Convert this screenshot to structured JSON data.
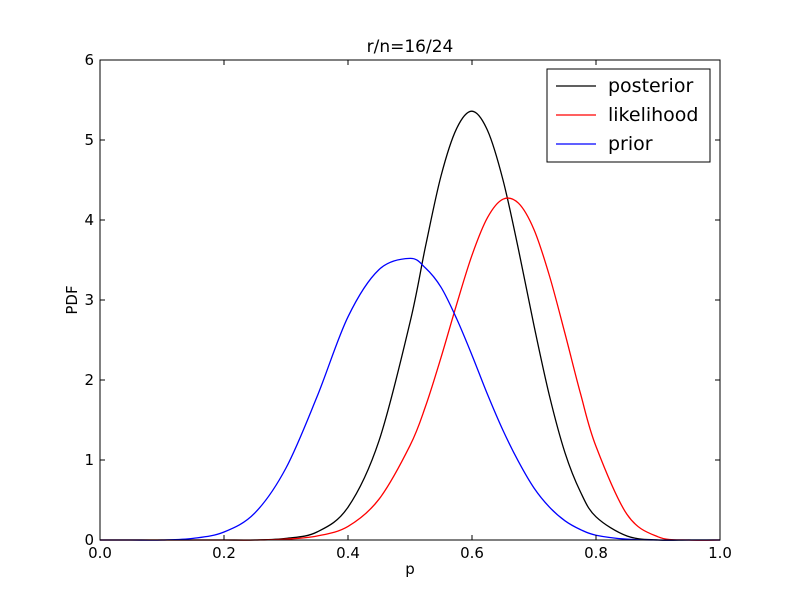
{
  "chart_data": {
    "type": "line",
    "title": "r/n=16/24",
    "xlabel": "p",
    "ylabel": "PDF",
    "xlim": [
      0.0,
      1.0
    ],
    "ylim": [
      0,
      6
    ],
    "xticks": [
      "0.0",
      "0.2",
      "0.4",
      "0.6",
      "0.8",
      "1.0"
    ],
    "yticks": [
      "0",
      "1",
      "2",
      "3",
      "4",
      "5",
      "6"
    ],
    "grid": false,
    "legend_position": "top-right",
    "x": [
      0.0,
      0.05,
      0.1,
      0.15,
      0.2,
      0.25,
      0.3,
      0.35,
      0.4,
      0.45,
      0.5,
      0.525,
      0.55,
      0.575,
      0.6,
      0.625,
      0.65,
      0.675,
      0.7,
      0.725,
      0.75,
      0.775,
      0.8,
      0.85,
      0.9,
      0.95,
      1.0
    ],
    "series": [
      {
        "name": "posterior",
        "color": "#000000",
        "values": [
          0,
          0,
          0,
          0,
          0.0,
          0.0,
          0.02,
          0.1,
          0.41,
          1.24,
          2.72,
          3.67,
          4.55,
          5.14,
          5.36,
          5.12,
          4.5,
          3.63,
          2.68,
          1.8,
          1.09,
          0.6,
          0.29,
          0.05,
          0.0,
          0,
          0
        ]
      },
      {
        "name": "likelihood",
        "color": "#ff0000",
        "values": [
          0,
          0,
          0,
          0,
          0.0,
          0.0,
          0.01,
          0.05,
          0.17,
          0.51,
          1.18,
          1.67,
          2.28,
          2.94,
          3.56,
          4.03,
          4.26,
          4.21,
          3.88,
          3.3,
          2.58,
          1.83,
          1.17,
          0.32,
          0.04,
          0.0,
          0
        ]
      },
      {
        "name": "prior",
        "color": "#0000ff",
        "values": [
          0,
          0.0,
          0.0,
          0.02,
          0.1,
          0.34,
          0.9,
          1.79,
          2.79,
          3.38,
          3.52,
          3.4,
          3.16,
          2.77,
          2.31,
          1.82,
          1.37,
          0.98,
          0.65,
          0.41,
          0.24,
          0.13,
          0.06,
          0.01,
          0.0,
          0,
          0
        ]
      }
    ]
  }
}
